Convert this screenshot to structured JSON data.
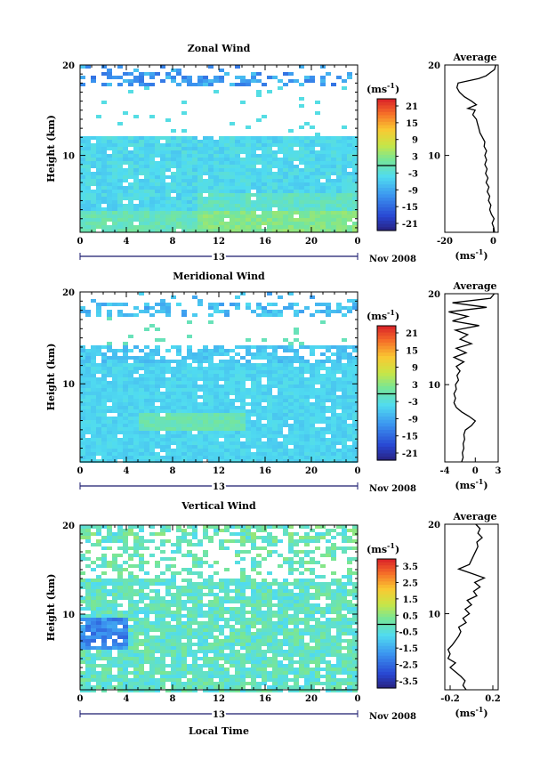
{
  "chart_data": [
    {
      "type": "heatmap",
      "title": "Zonal Wind",
      "ylabel": "Height (km)",
      "xlabel": "",
      "x_ticks": [
        "0",
        "4",
        "8",
        "12",
        "16",
        "20",
        "0"
      ],
      "y_ticks": [
        "20",
        "10"
      ],
      "xlim": [
        0,
        24
      ],
      "ylim": [
        1.5,
        20
      ],
      "date_label": "13",
      "date_suffix": "Nov 2008",
      "colorbar": {
        "unit": "(ms",
        "unit_sup": "-1",
        "unit_end": ")",
        "ticks": [
          "21",
          "15",
          "9",
          "3",
          "-3",
          "-9",
          "-15",
          "-21"
        ],
        "range": [
          -24,
          24
        ]
      },
      "average": {
        "title": "Average",
        "xlabel": "(ms",
        "xlabel_sup": "-1",
        "xlabel_end": ")",
        "x_ticks": [
          "-20",
          "0"
        ],
        "xlim": [
          -20,
          2
        ],
        "y_ticks": [
          "20",
          "10"
        ],
        "profile": [
          [
            1.5,
            0.5
          ],
          [
            2,
            0.2
          ],
          [
            2.5,
            -0.5
          ],
          [
            3,
            0.3
          ],
          [
            3.5,
            -0.8
          ],
          [
            4,
            -1.5
          ],
          [
            4.5,
            -1.0
          ],
          [
            5,
            -2.0
          ],
          [
            5.5,
            -1.5
          ],
          [
            6,
            -2.5
          ],
          [
            6.5,
            -1.8
          ],
          [
            7,
            -3.0
          ],
          [
            7.5,
            -2.2
          ],
          [
            8,
            -3.2
          ],
          [
            8.5,
            -2.6
          ],
          [
            9,
            -3.5
          ],
          [
            9.5,
            -2.8
          ],
          [
            10,
            -3.5
          ],
          [
            10.5,
            -2.8
          ],
          [
            11,
            -3.8
          ],
          [
            11.5,
            -3.5
          ],
          [
            12,
            -4.5
          ],
          [
            12.5,
            -5.5
          ],
          [
            13,
            -6.0
          ],
          [
            13.5,
            -6.5
          ],
          [
            14,
            -7.0
          ],
          [
            14.5,
            -8.5
          ],
          [
            15,
            -7.5
          ],
          [
            15.2,
            -10.5
          ],
          [
            15.6,
            -7.0
          ],
          [
            16,
            -9.0
          ],
          [
            16.5,
            -12.0
          ],
          [
            17,
            -14.0
          ],
          [
            17.5,
            -15.0
          ],
          [
            18,
            -14.5
          ],
          [
            18.5,
            -6.0
          ],
          [
            18.8,
            -3.0
          ],
          [
            19.2,
            -1.0
          ],
          [
            19.5,
            0.5
          ],
          [
            20,
            1.0
          ]
        ]
      }
    },
    {
      "type": "heatmap",
      "title": "Meridional Wind",
      "ylabel": "Height (km)",
      "xlabel": "",
      "x_ticks": [
        "0",
        "4",
        "8",
        "12",
        "16",
        "20",
        "0"
      ],
      "y_ticks": [
        "20",
        "10"
      ],
      "xlim": [
        0,
        24
      ],
      "ylim": [
        1.5,
        20
      ],
      "date_label": "13",
      "date_suffix": "Nov 2008",
      "colorbar": {
        "unit": "(ms",
        "unit_sup": "-1",
        "unit_end": ")",
        "ticks": [
          "21",
          "15",
          "9",
          "3",
          "-3",
          "-9",
          "-15",
          "-21"
        ],
        "range": [
          -24,
          24
        ]
      },
      "average": {
        "title": "Average",
        "xlabel": "(ms",
        "xlabel_sup": "-1",
        "xlabel_end": ")",
        "x_ticks": [
          "-4",
          "0",
          "3"
        ],
        "xlim": [
          -4,
          3
        ],
        "y_ticks": [
          "20",
          "10"
        ],
        "profile": [
          [
            1.5,
            -1.8
          ],
          [
            2,
            -1.6
          ],
          [
            2.5,
            -1.7
          ],
          [
            3,
            -1.5
          ],
          [
            3.5,
            -1.6
          ],
          [
            4,
            -1.4
          ],
          [
            4.5,
            -1.5
          ],
          [
            5,
            -1.3
          ],
          [
            5.5,
            -0.5
          ],
          [
            6,
            0.0
          ],
          [
            6.5,
            -0.8
          ],
          [
            7,
            -1.8
          ],
          [
            7.5,
            -2.5
          ],
          [
            8,
            -2.8
          ],
          [
            8.5,
            -2.6
          ],
          [
            9,
            -2.8
          ],
          [
            9.5,
            -2.5
          ],
          [
            10,
            -2.6
          ],
          [
            10.5,
            -2.2
          ],
          [
            11,
            -2.4
          ],
          [
            11.5,
            -2.0
          ],
          [
            12,
            -2.5
          ],
          [
            12.5,
            -1.5
          ],
          [
            13,
            -2.8
          ],
          [
            13.5,
            -1.2
          ],
          [
            14,
            -2.5
          ],
          [
            14.5,
            -0.5
          ],
          [
            15,
            -2.0
          ],
          [
            15.5,
            -1.0
          ],
          [
            16,
            -2.6
          ],
          [
            16.5,
            0.5
          ],
          [
            17,
            -3.0
          ],
          [
            17.5,
            -1.0
          ],
          [
            18,
            -3.5
          ],
          [
            18.5,
            1.5
          ],
          [
            19,
            -3.0
          ],
          [
            19.5,
            2.0
          ],
          [
            20,
            2.5
          ]
        ]
      }
    },
    {
      "type": "heatmap",
      "title": "Vertical Wind",
      "ylabel": "Height (km)",
      "xlabel": "Local Time",
      "x_ticks": [
        "0",
        "4",
        "8",
        "12",
        "16",
        "20",
        "0"
      ],
      "y_ticks": [
        "20",
        "10"
      ],
      "xlim": [
        0,
        24
      ],
      "ylim": [
        1.5,
        20
      ],
      "date_label": "13",
      "date_suffix": "Nov 2008",
      "colorbar": {
        "unit": "(ms",
        "unit_sup": "-1",
        "unit_end": ")",
        "ticks": [
          "3.5",
          "2.5",
          "1.5",
          "0.5",
          "-0.5",
          "-1.5",
          "-2.5",
          "-3.5"
        ],
        "range": [
          -4,
          4
        ]
      },
      "average": {
        "title": "Average",
        "xlabel": "(ms",
        "xlabel_sup": "-1",
        "xlabel_end": ")",
        "x_ticks": [
          "-0.2",
          "0.2"
        ],
        "xlim": [
          -0.25,
          0.25
        ],
        "y_ticks": [
          "20",
          "10"
        ],
        "profile": [
          [
            1.5,
            -0.05
          ],
          [
            2,
            -0.08
          ],
          [
            2.5,
            -0.06
          ],
          [
            3,
            -0.1
          ],
          [
            3.5,
            -0.15
          ],
          [
            4,
            -0.2
          ],
          [
            4.5,
            -0.15
          ],
          [
            5,
            -0.22
          ],
          [
            5.5,
            -0.2
          ],
          [
            6,
            -0.22
          ],
          [
            6.5,
            -0.18
          ],
          [
            7,
            -0.15
          ],
          [
            7.5,
            -0.12
          ],
          [
            8,
            -0.1
          ],
          [
            8.5,
            -0.12
          ],
          [
            9,
            -0.05
          ],
          [
            9.5,
            -0.08
          ],
          [
            10,
            -0.02
          ],
          [
            10.5,
            -0.06
          ],
          [
            11,
            0.0
          ],
          [
            11.5,
            -0.04
          ],
          [
            12,
            0.05
          ],
          [
            12.5,
            0.02
          ],
          [
            13,
            0.08
          ],
          [
            13.5,
            0.03
          ],
          [
            14,
            0.12
          ],
          [
            14.5,
            0.0
          ],
          [
            15,
            -0.12
          ],
          [
            15.5,
            -0.02
          ],
          [
            16,
            0.0
          ],
          [
            16.5,
            0.02
          ],
          [
            17,
            0.04
          ],
          [
            17.5,
            0.06
          ],
          [
            18,
            0.05
          ],
          [
            18.5,
            0.1
          ],
          [
            19,
            0.06
          ],
          [
            19.5,
            0.08
          ],
          [
            20,
            0.04
          ]
        ]
      }
    }
  ]
}
